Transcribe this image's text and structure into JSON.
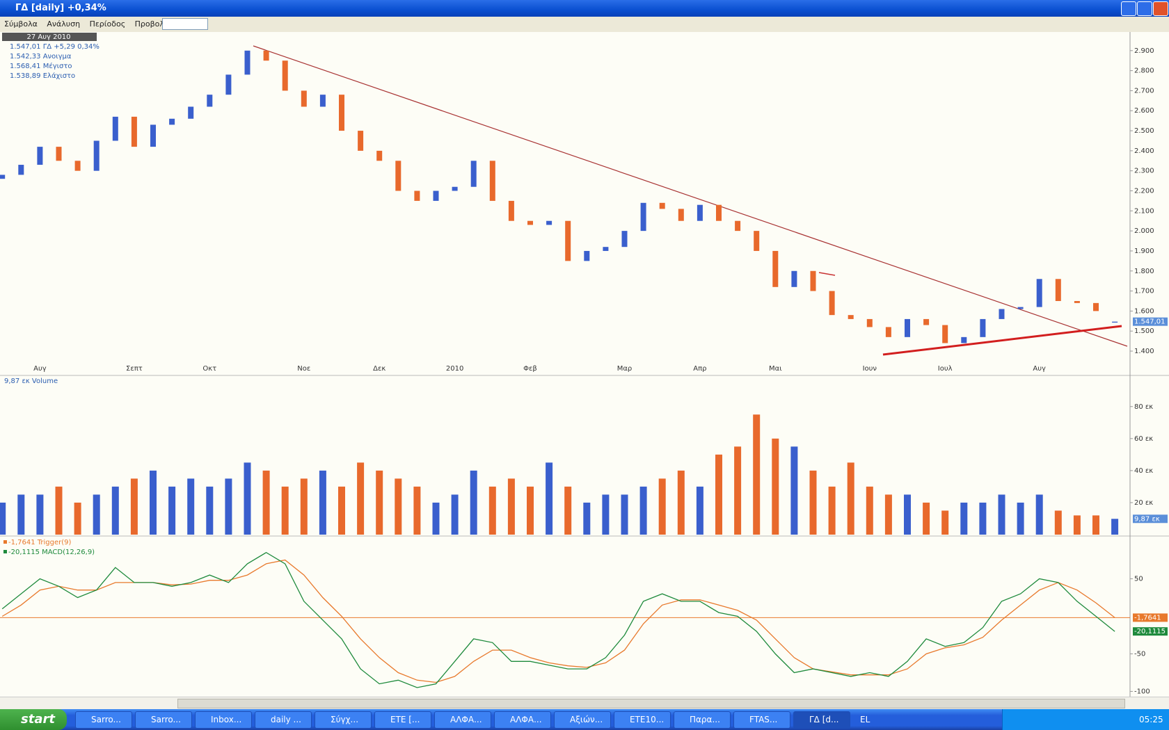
{
  "window": {
    "title": "ΓΔ [daily] +0,34%"
  },
  "menu": [
    "Σύμβολα",
    "Ανάλυση",
    "Περίοδος",
    "Προβολή"
  ],
  "chart_data": [
    {
      "type": "candlestick",
      "legend": [
        "27 Αυγ 2010",
        "1.547,01 ΓΔ +5,29 0,34%",
        "1.542,33 Ανοιγμα",
        "1.568,41 Μέγιστο",
        "1.538,89 Ελάχιστο"
      ],
      "value_tag": "1.547,01",
      "categories": [
        null,
        null,
        "Αυγ",
        null,
        null,
        null,
        null,
        "Σεπτ",
        null,
        null,
        null,
        "Οκτ",
        null,
        null,
        null,
        null,
        "Νοε",
        null,
        null,
        null,
        "Δεκ",
        null,
        null,
        null,
        "2010",
        null,
        null,
        null,
        "Φεβ",
        null,
        null,
        null,
        null,
        "Μαρ",
        null,
        null,
        null,
        "Απρ",
        null,
        null,
        null,
        "Μαι",
        null,
        null,
        null,
        null,
        "Ιουν",
        null,
        null,
        null,
        "Ιουλ",
        null,
        null,
        null,
        null,
        "Αυγ",
        null,
        null,
        null,
        null
      ],
      "open": [
        2260,
        2280,
        2330,
        2420,
        2350,
        2300,
        2450,
        2570,
        2420,
        2530,
        2560,
        2620,
        2680,
        2780,
        2900,
        2850,
        2700,
        2620,
        2680,
        2500,
        2400,
        2350,
        2200,
        2150,
        2200,
        2220,
        2350,
        2150,
        2050,
        2030,
        2050,
        1850,
        1900,
        1920,
        2000,
        2140,
        2110,
        2050,
        2130,
        2050,
        2000,
        1900,
        1720,
        1800,
        1700,
        1580,
        1560,
        1520,
        1470,
        1560,
        1530,
        1440,
        1470,
        1560,
        1610,
        1620,
        1760,
        1650,
        1640,
        1542.33
      ],
      "close": [
        2280,
        2330,
        2420,
        2350,
        2300,
        2450,
        2570,
        2420,
        2530,
        2560,
        2620,
        2680,
        2780,
        2900,
        2850,
        2700,
        2620,
        2680,
        2500,
        2400,
        2350,
        2200,
        2150,
        2200,
        2220,
        2350,
        2150,
        2050,
        2030,
        2050,
        1850,
        1900,
        1920,
        2000,
        2140,
        2110,
        2050,
        2130,
        2050,
        2000,
        1900,
        1720,
        1800,
        1700,
        1580,
        1560,
        1520,
        1470,
        1560,
        1530,
        1440,
        1470,
        1560,
        1610,
        1620,
        1760,
        1650,
        1640,
        1600,
        1547.01
      ],
      "up_color": "#3a5fcd",
      "down_color": "#e8692c",
      "ylim": [
        1348,
        2993
      ],
      "yticks": [
        {
          "value": 1400,
          "label": "1.400"
        },
        {
          "value": 1500,
          "label": "1.500"
        },
        {
          "value": 1600,
          "label": "1.600"
        },
        {
          "value": 1700,
          "label": "1.700"
        },
        {
          "value": 1800,
          "label": "1.800"
        },
        {
          "value": 1900,
          "label": "1.900"
        },
        {
          "value": 2000,
          "label": "2.000"
        },
        {
          "value": 2100,
          "label": "2.100"
        },
        {
          "value": 2200,
          "label": "2.200"
        },
        {
          "value": 2300,
          "label": "2.300"
        },
        {
          "value": 2400,
          "label": "2.400"
        },
        {
          "value": 2500,
          "label": "2.500"
        },
        {
          "value": 2600,
          "label": "2.600"
        },
        {
          "value": 2700,
          "label": "2.700"
        },
        {
          "value": 2800,
          "label": "2.800"
        },
        {
          "value": 2900,
          "label": "2.900"
        }
      ]
    },
    {
      "type": "bar",
      "legend": [
        "9,87 εκ Volume"
      ],
      "value_tag": "9,87 εκ",
      "values": [
        20,
        25,
        25,
        30,
        20,
        25,
        30,
        35,
        40,
        30,
        35,
        30,
        35,
        45,
        40,
        30,
        35,
        40,
        30,
        45,
        40,
        35,
        30,
        20,
        25,
        40,
        30,
        35,
        30,
        45,
        30,
        20,
        25,
        25,
        30,
        35,
        40,
        30,
        50,
        55,
        75,
        60,
        55,
        40,
        30,
        45,
        30,
        25,
        25,
        20,
        15,
        20,
        20,
        25,
        20,
        25,
        15,
        12,
        12,
        9.87
      ],
      "ylim": [
        0,
        99
      ],
      "yticks": [
        {
          "value": 20,
          "label": "20 εκ"
        },
        {
          "value": 40,
          "label": "40 εκ"
        },
        {
          "value": 60,
          "label": "60 εκ"
        },
        {
          "value": 80,
          "label": "80 εκ"
        }
      ]
    },
    {
      "type": "line",
      "ylim": [
        -107,
        107
      ],
      "yticks": [
        50,
        -50,
        -100
      ],
      "series": [
        {
          "name": "-1,7641 Trigger(9)",
          "tag": "-1,7641",
          "color": "#e8792c",
          "values": [
            0,
            15,
            35,
            40,
            35,
            35,
            45,
            45,
            45,
            42,
            43,
            48,
            48,
            55,
            70,
            75,
            55,
            25,
            0,
            -30,
            -55,
            -75,
            -85,
            -88,
            -80,
            -60,
            -45,
            -45,
            -55,
            -62,
            -66,
            -68,
            -62,
            -45,
            -10,
            15,
            22,
            22,
            15,
            8,
            -5,
            -30,
            -55,
            -70,
            -74,
            -78,
            -78,
            -78,
            -70,
            -50,
            -42,
            -38,
            -28,
            -5,
            15,
            35,
            45,
            35,
            18,
            -1.7641
          ]
        },
        {
          "name": "-20,1115 MACD(12,26,9)",
          "tag": "-20,1115",
          "color": "#1e8a3c",
          "values": [
            10,
            30,
            50,
            40,
            25,
            35,
            65,
            45,
            45,
            40,
            45,
            55,
            45,
            70,
            85,
            70,
            20,
            -5,
            -30,
            -70,
            -90,
            -85,
            -95,
            -90,
            -60,
            -30,
            -35,
            -60,
            -60,
            -65,
            -70,
            -70,
            -55,
            -25,
            20,
            30,
            20,
            20,
            5,
            0,
            -20,
            -50,
            -75,
            -70,
            -75,
            -80,
            -75,
            -80,
            -60,
            -30,
            -40,
            -35,
            -15,
            20,
            30,
            50,
            45,
            20,
            0,
            -20.1115
          ]
        }
      ]
    }
  ],
  "taskbar": {
    "start": "start",
    "items": [
      "Sarro...",
      "Sarro...",
      "Inbox...",
      "daily ...",
      "Σύγχ...",
      "ΕΤΕ [...",
      "ΑΛΦΑ...",
      "ΑΛΦΑ...",
      "Αξιών...",
      "ΕΤΕ10...",
      "Παρα...",
      "FTAS...",
      "ΓΔ [d..."
    ],
    "lang": "EL",
    "clock": "05:25"
  }
}
